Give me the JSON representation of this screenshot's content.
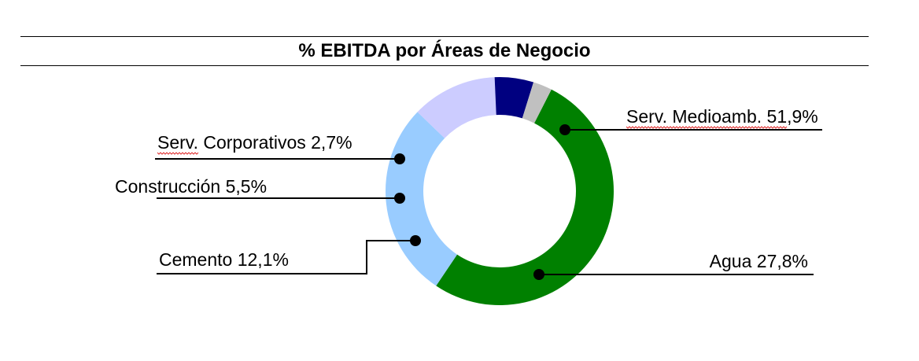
{
  "chart_data": {
    "type": "pie",
    "variant": "donut",
    "title": "% EBITDA por Áreas de Negocio",
    "categories": [
      "Serv. Medioamb.",
      "Agua",
      "Cemento",
      "Construcción",
      "Serv. Corporativos"
    ],
    "values": [
      51.9,
      27.8,
      12.1,
      5.5,
      2.7
    ],
    "value_labels": [
      "51,9%",
      "27,8%",
      "12,1%",
      "5,5%",
      "2,7%"
    ],
    "colors": [
      "#008000",
      "#99ccff",
      "#ccccff",
      "#000080",
      "#c0c0c0"
    ],
    "labels": [
      "Serv. Medioamb. 51,9%",
      "Agua 27,8%",
      "Cemento 12,1%",
      "Construcción 5,5%",
      "Serv. Corporativos 2,7%"
    ],
    "legend": "none",
    "start_angle_deg": -63
  }
}
